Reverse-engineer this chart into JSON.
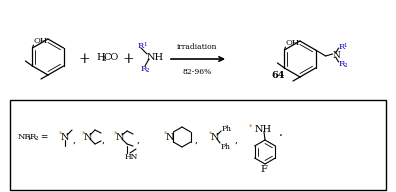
{
  "bg_color": "#ffffff",
  "text_color": "#000000",
  "blue_color": "#0000bb",
  "orange_color": "#cc6600",
  "figsize": [
    3.96,
    1.92
  ],
  "dpi": 100,
  "ylim": [
    0,
    192
  ],
  "xlim": [
    0,
    396
  ]
}
